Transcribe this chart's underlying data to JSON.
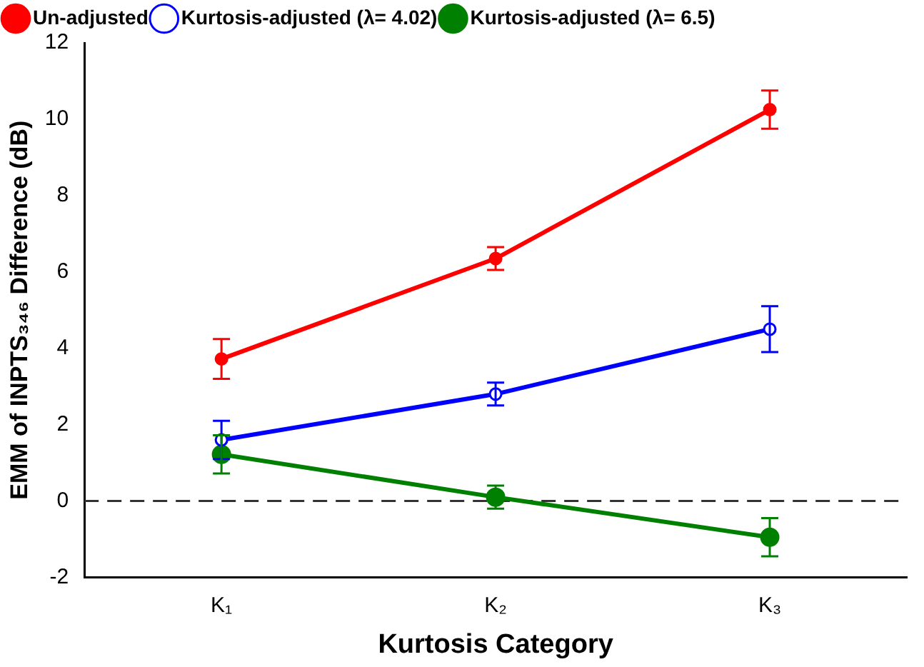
{
  "chart_data": {
    "type": "line",
    "xlabel": "Kurtosis Category",
    "ylabel": "EMM of INPTS₃₄₆ Difference (dB)",
    "categories": [
      "K₁",
      "K₂",
      "K₃"
    ],
    "series": [
      {
        "name": "Un-adjusted",
        "color": "#ff0000",
        "values": [
          3.72,
          6.35,
          10.25
        ],
        "errors": [
          0.52,
          0.3,
          0.5
        ]
      },
      {
        "name": "Kurtosis-adjusted (λ= 4.02)",
        "color": "#0000ff",
        "values": [
          1.6,
          2.8,
          4.5
        ],
        "errors": [
          0.5,
          0.3,
          0.6
        ]
      },
      {
        "name": "Kurtosis-adjusted (λ= 6.5)",
        "color": "#008000",
        "values": [
          1.22,
          0.1,
          -0.95
        ],
        "errors": [
          0.5,
          0.3,
          0.5
        ]
      }
    ],
    "ylim": [
      -2,
      12
    ],
    "yticks": [
      -2,
      0,
      2,
      4,
      6,
      8,
      10,
      12
    ],
    "grid": false,
    "legend": "top left",
    "marker": "circle",
    "line_style": "solid",
    "ref_lines": [
      {
        "axis": "y",
        "value": 0,
        "line_style": "dashed",
        "color": "#333333"
      }
    ]
  }
}
